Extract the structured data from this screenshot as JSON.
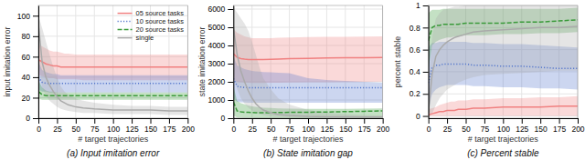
{
  "chart_data": [
    {
      "type": "line",
      "title": "(a) Input imitation error",
      "xlabel": "# target trajectories",
      "ylabel": "input imitation error",
      "x": [
        0,
        5,
        10,
        15,
        20,
        25,
        30,
        35,
        40,
        50,
        60,
        75,
        100,
        125,
        150,
        175,
        200
      ],
      "xlim": [
        0,
        200
      ],
      "xticks": [
        0,
        25,
        50,
        75,
        100,
        125,
        150,
        175,
        200
      ],
      "ylim": [
        0,
        110
      ],
      "yticks": [
        0,
        20,
        40,
        60,
        80,
        100
      ],
      "grid": true,
      "legend": "upper right",
      "series": [
        {
          "name": "05 source tasks",
          "color": "#f08080",
          "line_style": "solid",
          "values": [
            57,
            55,
            53,
            52,
            51,
            51,
            50,
            50,
            50,
            50,
            50,
            50,
            50,
            50,
            50,
            50,
            50
          ],
          "lower": [
            42,
            41,
            40,
            39,
            39,
            38,
            38,
            38,
            38,
            38,
            37,
            37,
            37,
            37,
            37,
            37,
            37
          ],
          "upper": [
            72,
            70,
            68,
            66,
            65,
            65,
            64,
            63,
            63,
            62,
            62,
            62,
            62,
            62,
            62,
            62,
            62
          ]
        },
        {
          "name": "10 source tasks",
          "color": "#5577cc",
          "line_style": "dotted",
          "values": [
            40,
            35,
            34,
            34,
            34,
            34,
            34,
            34,
            34,
            34,
            34,
            34,
            34,
            34,
            34,
            34,
            34
          ],
          "lower": [
            28,
            26,
            26,
            25,
            25,
            25,
            25,
            25,
            25,
            25,
            25,
            25,
            25,
            25,
            25,
            25,
            25
          ],
          "upper": [
            55,
            47,
            45,
            44,
            43,
            43,
            42,
            42,
            42,
            42,
            42,
            42,
            42,
            42,
            42,
            42,
            42
          ]
        },
        {
          "name": "20 source tasks",
          "color": "#3a9a3a",
          "line_style": "dashed",
          "values": [
            26,
            23,
            22,
            22,
            22,
            22,
            22,
            22,
            22,
            22,
            22,
            22,
            22,
            22,
            22,
            22,
            22
          ],
          "lower": [
            19,
            18,
            18,
            18,
            18,
            18,
            18,
            18,
            18,
            18,
            18,
            18,
            18,
            18,
            18,
            18,
            18
          ],
          "upper": [
            37,
            30,
            27,
            26,
            26,
            25,
            25,
            25,
            25,
            25,
            25,
            25,
            25,
            25,
            25,
            25,
            25
          ]
        },
        {
          "name": "single",
          "color": "#aaaaaa",
          "line_style": "solid",
          "values": [
            92,
            55,
            40,
            32,
            26,
            21,
            17,
            15,
            13,
            11,
            10,
            9,
            8,
            8,
            8,
            7,
            7
          ],
          "lower": [
            55,
            30,
            22,
            17,
            14,
            11,
            9,
            8,
            7,
            6,
            5,
            5,
            4,
            4,
            4,
            3,
            3
          ],
          "upper": [
            100,
            88,
            75,
            62,
            50,
            40,
            31,
            26,
            23,
            19,
            17,
            15,
            13,
            12,
            12,
            11,
            11
          ]
        }
      ]
    },
    {
      "type": "line",
      "title": "(b) State imitation gap",
      "xlabel": "# target trajectories",
      "ylabel": "state imitation error",
      "x": [
        0,
        5,
        10,
        15,
        20,
        25,
        30,
        35,
        40,
        50,
        60,
        75,
        100,
        125,
        150,
        175,
        200
      ],
      "xlim": [
        0,
        200
      ],
      "xticks": [
        0,
        25,
        50,
        75,
        100,
        125,
        150,
        175,
        200
      ],
      "ylim": [
        0,
        6200
      ],
      "yticks": [
        0,
        1000,
        2000,
        3000,
        4000,
        5000,
        6000
      ],
      "grid": true,
      "series": [
        {
          "name": "05 source tasks",
          "color": "#f08080",
          "line_style": "solid",
          "values": [
            3550,
            3350,
            3280,
            3250,
            3230,
            3220,
            3220,
            3220,
            3230,
            3240,
            3250,
            3270,
            3290,
            3310,
            3320,
            3330,
            3340
          ],
          "lower": [
            2100,
            2000,
            1980,
            1960,
            1950,
            1940,
            1940,
            1940,
            1940,
            1950,
            1950,
            1960,
            1970,
            1980,
            1990,
            2000,
            2010
          ],
          "upper": [
            4900,
            4700,
            4600,
            4500,
            4450,
            4400,
            4400,
            4400,
            4400,
            4400,
            4420,
            4440,
            4460,
            4470,
            4480,
            4490,
            4500
          ]
        },
        {
          "name": "10 source tasks",
          "color": "#5577cc",
          "line_style": "dotted",
          "values": [
            2180,
            1760,
            1710,
            1690,
            1680,
            1670,
            1670,
            1670,
            1670,
            1670,
            1670,
            1670,
            1670,
            1670,
            1670,
            1670,
            1670
          ],
          "lower": [
            1100,
            900,
            870,
            860,
            855,
            850,
            850,
            850,
            850,
            850,
            850,
            850,
            850,
            850,
            850,
            850,
            850
          ],
          "upper": [
            3400,
            2900,
            2800,
            2700,
            2650,
            2600,
            2580,
            2560,
            2540,
            2520,
            2500,
            2480,
            2200,
            2100,
            2050,
            2000,
            1950
          ]
        },
        {
          "name": "20 source tasks",
          "color": "#3a9a3a",
          "line_style": "dashed",
          "values": [
            900,
            400,
            350,
            330,
            320,
            310,
            305,
            305,
            305,
            305,
            310,
            320,
            330,
            340,
            360,
            380,
            400
          ],
          "lower": [
            150,
            40,
            20,
            15,
            10,
            8,
            6,
            5,
            5,
            5,
            5,
            5,
            5,
            5,
            5,
            5,
            5
          ],
          "upper": [
            1750,
            950,
            820,
            760,
            700,
            650,
            620,
            600,
            580,
            560,
            540,
            520,
            510,
            510,
            510,
            520,
            540
          ]
        },
        {
          "name": "single",
          "color": "#aaaaaa",
          "line_style": "solid",
          "values": [
            5000,
            3500,
            2600,
            2000,
            1500,
            1100,
            800,
            600,
            450,
            300,
            200,
            150,
            100,
            80,
            70,
            65,
            60
          ],
          "lower": [
            2500,
            1600,
            1100,
            800,
            580,
            420,
            300,
            220,
            160,
            100,
            65,
            45,
            30,
            20,
            15,
            12,
            10
          ],
          "upper": [
            6100,
            5800,
            5500,
            5200,
            4800,
            4200,
            3500,
            2800,
            2200,
            1600,
            1100,
            750,
            450,
            300,
            220,
            180,
            150
          ]
        }
      ]
    },
    {
      "type": "line",
      "title": "(c) Percent stable",
      "xlabel": "# target trajectories",
      "ylabel": "percent stable",
      "x": [
        0,
        5,
        10,
        15,
        20,
        25,
        30,
        35,
        40,
        50,
        60,
        75,
        100,
        125,
        150,
        175,
        200
      ],
      "xlim": [
        0,
        200
      ],
      "xticks": [
        0,
        25,
        50,
        75,
        100,
        125,
        150,
        175,
        200
      ],
      "ylim": [
        -0.02,
        1.0
      ],
      "yticks": [
        0,
        0.2,
        0.4,
        0.6,
        0.8,
        1
      ],
      "grid": true,
      "series": [
        {
          "name": "05 source tasks",
          "color": "#f08080",
          "line_style": "solid",
          "values": [
            0.01,
            0.02,
            0.03,
            0.04,
            0.04,
            0.05,
            0.05,
            0.05,
            0.06,
            0.06,
            0.07,
            0.07,
            0.08,
            0.08,
            0.08,
            0.09,
            0.09
          ],
          "lower": [
            0.0,
            0.0,
            0.0,
            0.0,
            0.0,
            0.0,
            0.0,
            0.0,
            0.0,
            0.0,
            0.0,
            0.0,
            0.0,
            0.0,
            0.0,
            0.0,
            0.0
          ],
          "upper": [
            0.06,
            0.07,
            0.08,
            0.1,
            0.11,
            0.12,
            0.13,
            0.13,
            0.14,
            0.14,
            0.15,
            0.15,
            0.16,
            0.16,
            0.17,
            0.17,
            0.18
          ]
        },
        {
          "name": "10 source tasks",
          "color": "#5577cc",
          "line_style": "dotted",
          "values": [
            0.3,
            0.44,
            0.46,
            0.46,
            0.47,
            0.47,
            0.47,
            0.47,
            0.47,
            0.47,
            0.46,
            0.46,
            0.45,
            0.45,
            0.44,
            0.43,
            0.43
          ],
          "lower": [
            0.05,
            0.2,
            0.24,
            0.26,
            0.27,
            0.28,
            0.28,
            0.28,
            0.28,
            0.28,
            0.27,
            0.27,
            0.26,
            0.26,
            0.25,
            0.25,
            0.24
          ],
          "upper": [
            0.62,
            0.66,
            0.66,
            0.67,
            0.67,
            0.67,
            0.67,
            0.67,
            0.67,
            0.67,
            0.66,
            0.66,
            0.65,
            0.65,
            0.64,
            0.63,
            0.62
          ]
        },
        {
          "name": "20 source tasks",
          "color": "#3a9a3a",
          "line_style": "dashed",
          "values": [
            0.68,
            0.8,
            0.82,
            0.82,
            0.83,
            0.83,
            0.83,
            0.83,
            0.83,
            0.84,
            0.84,
            0.84,
            0.84,
            0.85,
            0.85,
            0.86,
            0.87
          ],
          "lower": [
            0.42,
            0.64,
            0.67,
            0.69,
            0.7,
            0.71,
            0.71,
            0.72,
            0.72,
            0.73,
            0.73,
            0.73,
            0.74,
            0.74,
            0.75,
            0.75,
            0.76
          ],
          "upper": [
            0.93,
            0.96,
            0.96,
            0.96,
            0.97,
            0.97,
            0.97,
            0.97,
            0.97,
            0.97,
            0.97,
            0.97,
            0.97,
            0.97,
            0.97,
            0.97,
            0.98
          ]
        },
        {
          "name": "single",
          "color": "#aaaaaa",
          "line_style": "solid",
          "values": [
            0.03,
            0.38,
            0.54,
            0.6,
            0.64,
            0.67,
            0.69,
            0.71,
            0.72,
            0.74,
            0.76,
            0.77,
            0.78,
            0.79,
            0.8,
            0.8,
            0.81
          ],
          "lower": [
            0.0,
            0.02,
            0.1,
            0.16,
            0.2,
            0.24,
            0.26,
            0.28,
            0.3,
            0.33,
            0.35,
            0.37,
            0.38,
            0.39,
            0.4,
            0.41,
            0.41
          ],
          "upper": [
            0.2,
            0.72,
            0.88,
            0.93,
            0.96,
            0.97,
            0.98,
            0.99,
            0.99,
            1.0,
            1.0,
            1.0,
            1.0,
            1.0,
            1.0,
            1.0,
            1.0
          ]
        }
      ]
    }
  ]
}
